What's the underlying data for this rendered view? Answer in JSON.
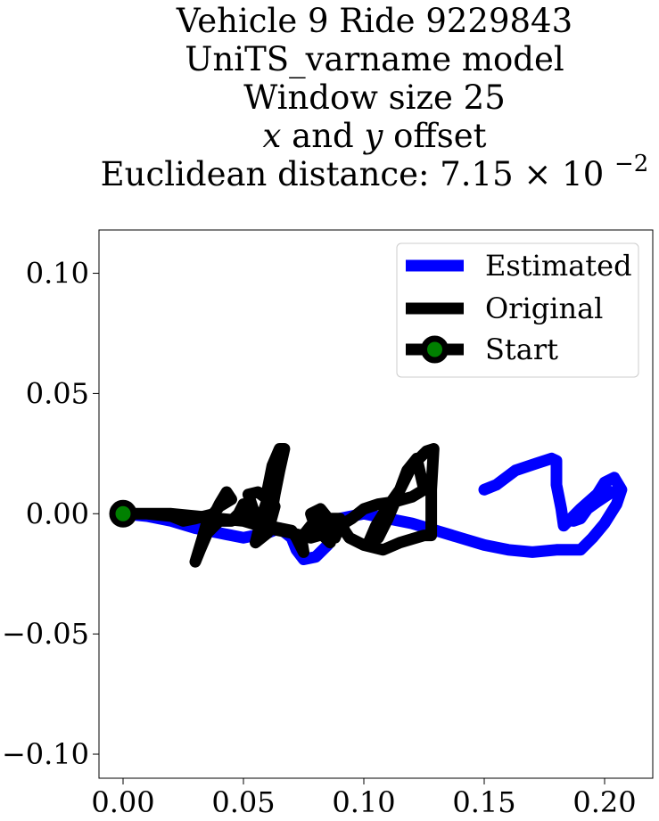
{
  "chart_data": {
    "type": "line",
    "title_lines": [
      "Vehicle 9 Ride 9229843",
      "UniTS_varname model",
      "Window size 25",
      "x and y offset",
      "Euclidean distance: 7.15 × 10"
    ],
    "title_var_x": "x",
    "title_and": "and",
    "title_var_y": "y",
    "title_offset": "offset",
    "distance_prefix": "Euclidean distance: 7.15 × 10",
    "distance_exponent": "−2",
    "xlabel": "",
    "ylabel": "",
    "xlim": [
      -0.01,
      0.22
    ],
    "ylim": [
      -0.11,
      0.118
    ],
    "xticks": [
      0.0,
      0.05,
      0.1,
      0.15,
      0.2
    ],
    "xtick_labels": [
      "0.00",
      "0.05",
      "0.10",
      "0.15",
      "0.20"
    ],
    "yticks": [
      -0.1,
      -0.05,
      0.0,
      0.05,
      0.1
    ],
    "ytick_labels": [
      "−0.10",
      "−0.05",
      "0.00",
      "0.05",
      "0.10"
    ],
    "grid": false,
    "legend_position": "top-right",
    "series": [
      {
        "name": "Estimated",
        "color": "#0000ff",
        "points": [
          [
            0.0,
            0.0
          ],
          [
            0.01,
            -0.001
          ],
          [
            0.02,
            -0.003
          ],
          [
            0.03,
            -0.006
          ],
          [
            0.04,
            -0.008
          ],
          [
            0.05,
            -0.01
          ],
          [
            0.06,
            -0.008
          ],
          [
            0.065,
            -0.006
          ],
          [
            0.07,
            -0.01
          ],
          [
            0.072,
            -0.015
          ],
          [
            0.075,
            -0.019
          ],
          [
            0.08,
            -0.018
          ],
          [
            0.085,
            -0.013
          ],
          [
            0.088,
            -0.006
          ],
          [
            0.09,
            -0.002
          ],
          [
            0.1,
            0.0
          ],
          [
            0.11,
            -0.002
          ],
          [
            0.12,
            -0.004
          ],
          [
            0.13,
            -0.007
          ],
          [
            0.14,
            -0.01
          ],
          [
            0.15,
            -0.013
          ],
          [
            0.16,
            -0.015
          ],
          [
            0.17,
            -0.016
          ],
          [
            0.18,
            -0.015
          ],
          [
            0.19,
            -0.015
          ],
          [
            0.195,
            -0.01
          ],
          [
            0.2,
            -0.004
          ],
          [
            0.205,
            0.004
          ],
          [
            0.207,
            0.01
          ],
          [
            0.204,
            0.015
          ],
          [
            0.2,
            0.013
          ],
          [
            0.195,
            0.005
          ],
          [
            0.19,
            -0.002
          ],
          [
            0.187,
            -0.003
          ],
          [
            0.19,
            0.0
          ],
          [
            0.197,
            0.005
          ],
          [
            0.203,
            0.009
          ],
          [
            0.199,
            0.01
          ],
          [
            0.19,
            0.002
          ],
          [
            0.183,
            -0.005
          ],
          [
            0.182,
            0.002
          ],
          [
            0.18,
            0.012
          ],
          [
            0.18,
            0.022
          ],
          [
            0.178,
            0.023
          ],
          [
            0.172,
            0.021
          ],
          [
            0.163,
            0.018
          ],
          [
            0.155,
            0.012
          ],
          [
            0.15,
            0.01
          ]
        ]
      },
      {
        "name": "Original",
        "color": "#000000",
        "points": [
          [
            0.0,
            0.0
          ],
          [
            0.01,
            0.0
          ],
          [
            0.02,
            -0.001
          ],
          [
            0.025,
            -0.003
          ],
          [
            0.03,
            -0.002
          ],
          [
            0.038,
            0.0
          ],
          [
            0.04,
            0.004
          ],
          [
            0.043,
            0.009
          ],
          [
            0.045,
            0.006
          ],
          [
            0.04,
            0.003
          ],
          [
            0.035,
            -0.003
          ],
          [
            0.033,
            -0.01
          ],
          [
            0.03,
            -0.02
          ],
          [
            0.032,
            -0.015
          ],
          [
            0.035,
            -0.008
          ],
          [
            0.04,
            -0.003
          ],
          [
            0.045,
            -0.003
          ],
          [
            0.048,
            0.0
          ],
          [
            0.05,
            0.004
          ],
          [
            0.05,
            -0.002
          ],
          [
            0.052,
            0.003
          ],
          [
            0.055,
            -0.001
          ],
          [
            0.052,
            0.008
          ],
          [
            0.056,
            0.009
          ],
          [
            0.06,
            0.006
          ],
          [
            0.058,
            0.0
          ],
          [
            0.055,
            -0.012
          ],
          [
            0.06,
            -0.008
          ],
          [
            0.063,
            0.003
          ],
          [
            0.06,
            0.01
          ],
          [
            0.062,
            0.02
          ],
          [
            0.065,
            0.027
          ],
          [
            0.067,
            0.027
          ],
          [
            0.065,
            0.018
          ],
          [
            0.063,
            0.008
          ],
          [
            0.062,
            0.002
          ],
          [
            0.06,
            -0.005
          ],
          [
            0.065,
            -0.006
          ],
          [
            0.07,
            -0.007
          ],
          [
            0.072,
            -0.01
          ],
          [
            0.075,
            -0.016
          ],
          [
            0.074,
            -0.01
          ],
          [
            0.078,
            -0.005
          ],
          [
            0.082,
            -0.008
          ],
          [
            0.086,
            -0.012
          ],
          [
            0.085,
            -0.006
          ],
          [
            0.082,
            -0.003
          ],
          [
            0.085,
            -0.002
          ],
          [
            0.09,
            -0.002
          ],
          [
            0.092,
            -0.007
          ],
          [
            0.094,
            -0.01
          ],
          [
            0.1,
            -0.013
          ],
          [
            0.108,
            -0.015
          ],
          [
            0.115,
            -0.012
          ],
          [
            0.125,
            -0.009
          ],
          [
            0.128,
            -0.009
          ],
          [
            0.128,
            0.01
          ],
          [
            0.129,
            0.027
          ],
          [
            0.126,
            0.026
          ],
          [
            0.12,
            0.02
          ],
          [
            0.115,
            0.01
          ],
          [
            0.11,
            0.003
          ],
          [
            0.105,
            -0.005
          ],
          [
            0.102,
            -0.012
          ],
          [
            0.106,
            -0.01
          ],
          [
            0.11,
            -0.002
          ],
          [
            0.115,
            0.01
          ],
          [
            0.118,
            0.018
          ],
          [
            0.122,
            0.023
          ],
          [
            0.125,
            0.01
          ],
          [
            0.12,
            0.007
          ],
          [
            0.113,
            0.005
          ],
          [
            0.106,
            0.004
          ],
          [
            0.1,
            0.002
          ],
          [
            0.095,
            -0.002
          ],
          [
            0.09,
            -0.005
          ],
          [
            0.088,
            -0.01
          ],
          [
            0.085,
            -0.008
          ],
          [
            0.086,
            -0.003
          ],
          [
            0.082,
            0.002
          ],
          [
            0.078,
            0.0
          ],
          [
            0.08,
            -0.006
          ],
          [
            0.085,
            -0.008
          ],
          [
            0.078,
            -0.01
          ],
          [
            0.07,
            -0.008
          ],
          [
            0.06,
            -0.006
          ],
          [
            0.05,
            -0.003
          ],
          [
            0.04,
            -0.002
          ],
          [
            0.03,
            -0.001
          ],
          [
            0.02,
            0.0
          ],
          [
            0.01,
            0.0
          ]
        ]
      }
    ],
    "start_point": {
      "name": "Start",
      "x": 0.0,
      "y": 0.0,
      "marker_color": "#008000",
      "edge_color": "#000000"
    }
  }
}
